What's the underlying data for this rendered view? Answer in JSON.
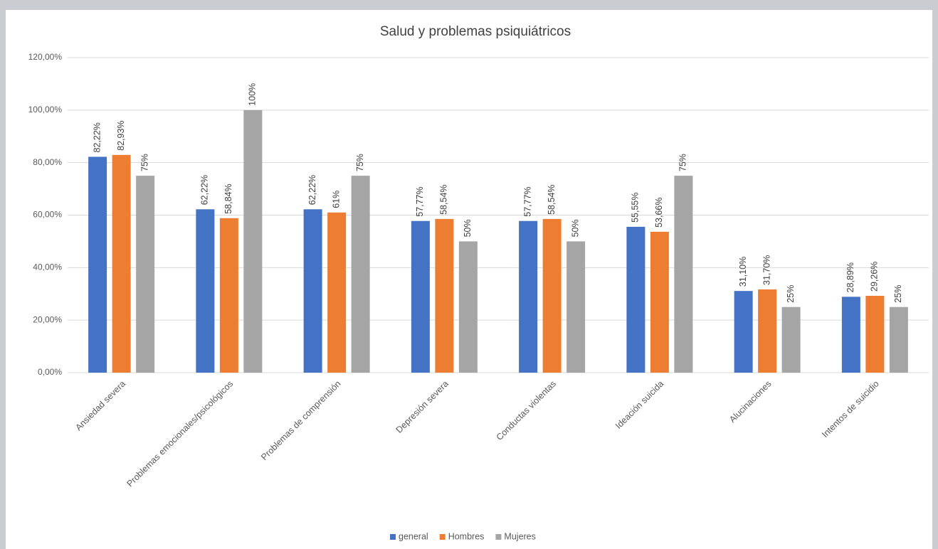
{
  "chart_data": {
    "type": "bar",
    "title": "Salud y problemas psiquiátricos",
    "categories": [
      "Ansiedad severa",
      "Problemas emocionales/psicológicos",
      "Problemas de comprensión",
      "Depresión severa",
      "Conductas violentas",
      "Ideación suicida",
      "Alucinaciones",
      "Intentos de suicidio"
    ],
    "series": [
      {
        "name": "general",
        "color": "#4472c4",
        "values": [
          82.22,
          62.22,
          62.22,
          57.77,
          57.77,
          55.55,
          31.1,
          28.89
        ],
        "value_labels": [
          "82,22%",
          "62,22%",
          "62,22%",
          "57,77%",
          "57,77%",
          "55,55%",
          "31,10%",
          "28,89%"
        ]
      },
      {
        "name": "Hombres",
        "color": "#ed7d31",
        "values": [
          82.93,
          58.84,
          61,
          58.54,
          58.54,
          53.66,
          31.7,
          29.26
        ],
        "value_labels": [
          "82,93%",
          "58,84%",
          "61%",
          "58,54%",
          "58,54%",
          "53,66%",
          "31,70%",
          "29,26%"
        ]
      },
      {
        "name": "Mujeres",
        "color": "#a5a5a5",
        "values": [
          75,
          100,
          75,
          50,
          50,
          75,
          25,
          25
        ],
        "value_labels": [
          "75%",
          "100%",
          "75%",
          "50%",
          "50%",
          "75%",
          "25%",
          "25%"
        ]
      }
    ],
    "ylim": [
      0,
      120
    ],
    "yticks": [
      {
        "value": 0,
        "label": "0,00%"
      },
      {
        "value": 20,
        "label": "20,00%"
      },
      {
        "value": 40,
        "label": "40,00%"
      },
      {
        "value": 60,
        "label": "60,00%"
      },
      {
        "value": 80,
        "label": "80,00%"
      },
      {
        "value": 100,
        "label": "100,00%"
      },
      {
        "value": 120,
        "label": "120,00%"
      }
    ],
    "grid": true,
    "legend": "bottom"
  }
}
